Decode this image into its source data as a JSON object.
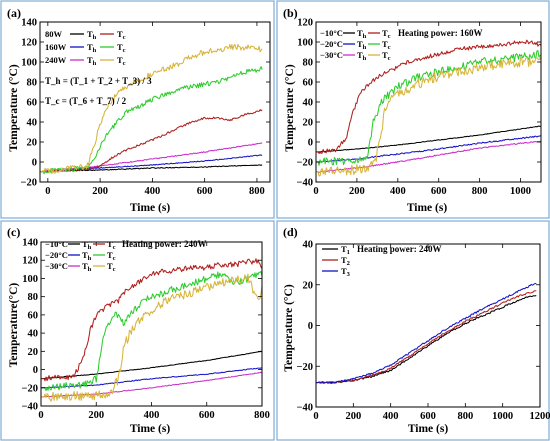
{
  "colors": {
    "black": "#000000",
    "red": "#b0201e",
    "blue": "#1414c8",
    "magenta": "#cc2fcc",
    "green": "#2ecc2e",
    "gold": "#d7b43a",
    "panel_border": "#7eaed6"
  },
  "chart_data": [
    {
      "panel": "(a)",
      "type": "line",
      "xlabel": "Time (s)",
      "ylabel": "Temperature (°C)",
      "xlim": [
        -30,
        850
      ],
      "ylim": [
        -20,
        140
      ],
      "xticks": [
        0,
        200,
        400,
        600,
        800
      ],
      "yticks": [
        -20,
        0,
        20,
        40,
        60,
        80,
        100,
        120,
        140
      ],
      "legend": {
        "rows": [
          {
            "label": "80W",
            "entries": [
              {
                "name": "T",
                "sub": "h",
                "color": "black"
              },
              {
                "name": "T",
                "sub": "c",
                "color": "red"
              }
            ]
          },
          {
            "label": "160W",
            "entries": [
              {
                "name": "T",
                "sub": "h",
                "color": "blue"
              },
              {
                "name": "T",
                "sub": "c",
                "color": "green"
              }
            ]
          },
          {
            "label": "240W",
            "entries": [
              {
                "name": "T",
                "sub": "h",
                "color": "magenta"
              },
              {
                "name": "T",
                "sub": "c",
                "color": "gold"
              }
            ]
          }
        ]
      },
      "equations": [
        "T_h = (T_1 + T_2 + T_3) / 3",
        "T_c = (T_6 + T_7) / 2"
      ],
      "series": [
        {
          "color": "black",
          "noise": 0.4,
          "x": [
            -30,
            0,
            200,
            400,
            600,
            700,
            820
          ],
          "y": [
            -10,
            -9,
            -8,
            -6,
            -5,
            -4,
            -3
          ]
        },
        {
          "color": "blue",
          "noise": 0.4,
          "x": [
            -30,
            0,
            200,
            400,
            600,
            820
          ],
          "y": [
            -10,
            -9,
            -6,
            -3,
            1,
            7
          ]
        },
        {
          "color": "magenta",
          "noise": 0.5,
          "x": [
            -30,
            0,
            200,
            400,
            600,
            820
          ],
          "y": [
            -10,
            -9,
            -4,
            3,
            10,
            19
          ]
        },
        {
          "color": "red",
          "noise": 1.0,
          "x": [
            -30,
            0,
            150,
            200,
            250,
            300,
            400,
            500,
            550,
            600,
            650,
            700,
            750,
            820
          ],
          "y": [
            -10,
            -9,
            -7,
            -4,
            5,
            12,
            22,
            34,
            40,
            44,
            44,
            42,
            47,
            52
          ]
        },
        {
          "color": "green",
          "noise": 2.5,
          "x": [
            -30,
            0,
            150,
            180,
            220,
            270,
            300,
            350,
            400,
            450,
            500,
            600,
            650,
            700,
            750,
            800,
            820
          ],
          "y": [
            -10,
            -9,
            -6,
            5,
            25,
            42,
            50,
            55,
            63,
            68,
            73,
            78,
            80,
            85,
            90,
            92,
            94
          ]
        },
        {
          "color": "gold",
          "noise": 3.0,
          "x": [
            -30,
            0,
            150,
            180,
            210,
            240,
            270,
            300,
            350,
            400,
            450,
            500,
            550,
            600,
            700,
            800,
            820
          ],
          "y": [
            -10,
            -9,
            -5,
            20,
            45,
            60,
            70,
            75,
            82,
            88,
            93,
            98,
            105,
            110,
            115,
            114,
            112
          ]
        }
      ]
    },
    {
      "panel": "(b)",
      "type": "line",
      "xlabel": "Time (s)",
      "ylabel": "Temperature (°C)",
      "xlim": [
        0,
        1100
      ],
      "ylim": [
        -40,
        120
      ],
      "xticks": [
        0,
        200,
        400,
        600,
        800,
        1000
      ],
      "yticks": [
        -40,
        -20,
        0,
        20,
        40,
        60,
        80,
        100,
        120
      ],
      "legend": {
        "rows": [
          {
            "label": "−10°C",
            "entries": [
              {
                "name": "T",
                "sub": "h",
                "color": "black"
              },
              {
                "name": "T",
                "sub": "c",
                "color": "red"
              }
            ]
          },
          {
            "label": "−20°C",
            "entries": [
              {
                "name": "T",
                "sub": "h",
                "color": "blue"
              },
              {
                "name": "T",
                "sub": "c",
                "color": "green"
              }
            ]
          },
          {
            "label": "−30°C",
            "entries": [
              {
                "name": "T",
                "sub": "h",
                "color": "magenta"
              },
              {
                "name": "T",
                "sub": "c",
                "color": "gold"
              }
            ]
          }
        ]
      },
      "annotation": "Heating power: 160W",
      "series": [
        {
          "color": "black",
          "noise": 0.3,
          "x": [
            0,
            200,
            400,
            600,
            800,
            1100
          ],
          "y": [
            -10,
            -7,
            -3,
            2,
            7,
            16
          ]
        },
        {
          "color": "blue",
          "noise": 0.6,
          "x": [
            0,
            200,
            400,
            600,
            800,
            1100
          ],
          "y": [
            -20,
            -17,
            -12,
            -7,
            -1,
            6
          ]
        },
        {
          "color": "magenta",
          "noise": 0.6,
          "x": [
            0,
            200,
            400,
            600,
            800,
            1100
          ],
          "y": [
            -30,
            -26,
            -20,
            -13,
            -6,
            1
          ]
        },
        {
          "color": "red",
          "noise": 2.0,
          "x": [
            0,
            100,
            150,
            180,
            220,
            260,
            300,
            350,
            400,
            450,
            500,
            600,
            700,
            800,
            900,
            1000,
            1050,
            1100
          ],
          "y": [
            -10,
            -8,
            5,
            30,
            50,
            58,
            65,
            70,
            75,
            80,
            83,
            88,
            93,
            95,
            97,
            100,
            100,
            96
          ]
        },
        {
          "color": "green",
          "noise": 4.0,
          "x": [
            0,
            200,
            250,
            280,
            320,
            360,
            400,
            450,
            500,
            550,
            600,
            700,
            800,
            900,
            1000,
            1100
          ],
          "y": [
            -20,
            -18,
            -15,
            20,
            40,
            48,
            55,
            60,
            65,
            68,
            70,
            75,
            80,
            82,
            85,
            88
          ]
        },
        {
          "color": "gold",
          "noise": 5.0,
          "x": [
            0,
            250,
            290,
            320,
            340,
            380,
            420,
            470,
            520,
            600,
            700,
            800,
            900,
            1000,
            1100
          ],
          "y": [
            -30,
            -27,
            -20,
            10,
            35,
            45,
            50,
            55,
            60,
            66,
            70,
            75,
            78,
            80,
            80
          ]
        }
      ]
    },
    {
      "panel": "(c)",
      "type": "line",
      "xlabel": "Time (s)",
      "ylabel": "Temperature(°C)",
      "xlim": [
        0,
        800
      ],
      "ylim": [
        -40,
        140
      ],
      "xticks": [
        0,
        200,
        400,
        600,
        800
      ],
      "yticks": [
        -40,
        -20,
        0,
        20,
        40,
        60,
        80,
        100,
        120,
        140
      ],
      "legend": {
        "rows": [
          {
            "label": "−10°C",
            "entries": [
              {
                "name": "T",
                "sub": "h",
                "color": "black"
              },
              {
                "name": "T",
                "sub": "c",
                "color": "red"
              }
            ]
          },
          {
            "label": "−20°C",
            "entries": [
              {
                "name": "T",
                "sub": "h",
                "color": "blue"
              },
              {
                "name": "T",
                "sub": "c",
                "color": "green"
              }
            ]
          },
          {
            "label": "−30°C",
            "entries": [
              {
                "name": "T",
                "sub": "h",
                "color": "magenta"
              },
              {
                "name": "T",
                "sub": "c",
                "color": "gold"
              }
            ]
          }
        ]
      },
      "annotation": "Heating power: 240W",
      "series": [
        {
          "color": "black",
          "noise": 0.3,
          "x": [
            0,
            200,
            400,
            600,
            800
          ],
          "y": [
            -10,
            -5,
            2,
            10,
            20
          ]
        },
        {
          "color": "blue",
          "noise": 0.4,
          "x": [
            0,
            200,
            400,
            600,
            800
          ],
          "y": [
            -20,
            -17,
            -10,
            -5,
            2
          ]
        },
        {
          "color": "magenta",
          "noise": 0.4,
          "x": [
            0,
            200,
            400,
            600,
            800
          ],
          "y": [
            -30,
            -27,
            -20,
            -12,
            -3
          ]
        },
        {
          "color": "red",
          "noise": 3.0,
          "x": [
            0,
            120,
            160,
            180,
            200,
            240,
            280,
            300,
            350,
            400,
            450,
            500,
            550,
            600,
            650,
            700,
            750,
            790,
            800
          ],
          "y": [
            -10,
            -8,
            20,
            45,
            60,
            70,
            75,
            85,
            95,
            105,
            108,
            110,
            112,
            112,
            115,
            115,
            118,
            120,
            110
          ]
        },
        {
          "color": "green",
          "noise": 4.0,
          "x": [
            0,
            150,
            200,
            230,
            250,
            270,
            300,
            320,
            360,
            400,
            450,
            500,
            550,
            600,
            650,
            700,
            750,
            800
          ],
          "y": [
            -20,
            -17,
            -10,
            40,
            55,
            60,
            50,
            60,
            72,
            80,
            85,
            90,
            95,
            100,
            105,
            95,
            100,
            105
          ]
        },
        {
          "color": "gold",
          "noise": 5.0,
          "x": [
            0,
            250,
            280,
            300,
            330,
            360,
            400,
            450,
            500,
            550,
            600,
            650,
            700,
            750,
            770,
            790,
            800
          ],
          "y": [
            -30,
            -28,
            -10,
            25,
            45,
            55,
            65,
            75,
            80,
            85,
            90,
            95,
            98,
            100,
            85,
            75,
            90
          ]
        }
      ]
    },
    {
      "panel": "(d)",
      "type": "line",
      "xlabel": "Time (s)",
      "ylabel": "Temperature (°C)",
      "xlim": [
        0,
        1200
      ],
      "ylim": [
        -40,
        40
      ],
      "xticks": [
        0,
        200,
        400,
        600,
        800,
        1000,
        1200
      ],
      "yticks": [
        -40,
        -20,
        0,
        20,
        40
      ],
      "legend": {
        "rows": [
          {
            "label": "",
            "entries": [
              {
                "name": "T",
                "sub": "1",
                "color": "black"
              }
            ]
          },
          {
            "label": "",
            "entries": [
              {
                "name": "T",
                "sub": "2",
                "color": "red"
              }
            ]
          },
          {
            "label": "",
            "entries": [
              {
                "name": "T",
                "sub": "3",
                "color": "blue"
              }
            ]
          }
        ]
      },
      "annotation": "Heating power: 240W",
      "series": [
        {
          "color": "black",
          "noise": 0.4,
          "x": [
            0,
            100,
            200,
            300,
            400,
            500,
            600,
            700,
            800,
            900,
            1000,
            1100,
            1180
          ],
          "y": [
            -28,
            -28,
            -27,
            -25,
            -22,
            -16,
            -10,
            -4,
            1,
            5,
            9,
            13,
            15
          ]
        },
        {
          "color": "red",
          "noise": 0.4,
          "x": [
            0,
            100,
            200,
            300,
            400,
            500,
            600,
            700,
            800,
            900,
            1000,
            1100,
            1180
          ],
          "y": [
            -28,
            -28,
            -27,
            -24.5,
            -21,
            -15,
            -9,
            -3,
            2,
            6.5,
            11,
            15,
            17
          ]
        },
        {
          "color": "blue",
          "noise": 0.4,
          "x": [
            0,
            100,
            200,
            300,
            400,
            500,
            600,
            700,
            800,
            900,
            1000,
            1100,
            1180
          ],
          "y": [
            -28,
            -28,
            -26,
            -23.5,
            -19.5,
            -13.5,
            -7.5,
            -1.5,
            3.5,
            8.5,
            13,
            17.5,
            21
          ]
        }
      ]
    }
  ]
}
